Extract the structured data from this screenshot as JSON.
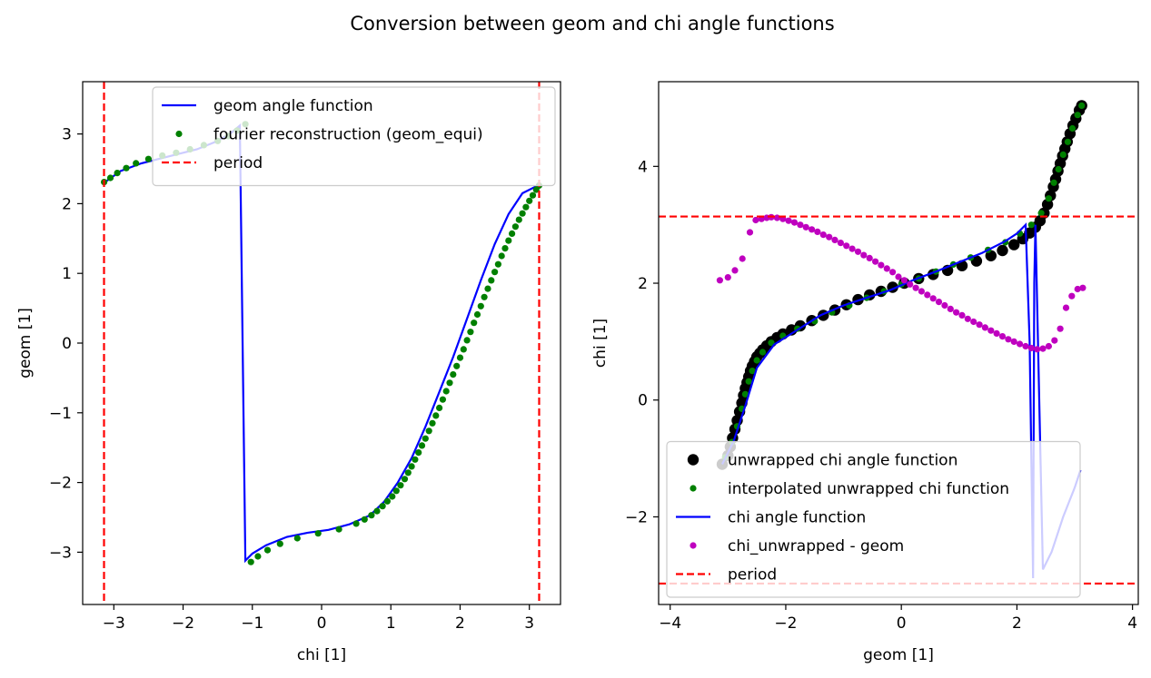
{
  "figure": {
    "suptitle": "Conversion between geom and chi angle functions"
  },
  "chart_data": [
    {
      "type": "line",
      "title": "",
      "xlabel": "chi [1]",
      "ylabel": "geom [1]",
      "xlim": [
        -3.45,
        3.45
      ],
      "ylim": [
        -3.75,
        3.75
      ],
      "xticks": [
        -3,
        -2,
        -1,
        0,
        1,
        2,
        3
      ],
      "yticks": [
        -3,
        -2,
        -1,
        0,
        1,
        2,
        3
      ],
      "xtick_labels": [
        "−3",
        "−2",
        "−1",
        "0",
        "1",
        "2",
        "3"
      ],
      "ytick_labels": [
        "−3",
        "−2",
        "−1",
        "0",
        "1",
        "2",
        "3"
      ],
      "grid": false,
      "legend_position": "upper right",
      "colors": {
        "geom": "#0000ff",
        "fourier": "#008000",
        "period": "#ff0000"
      },
      "series": [
        {
          "name": "geom angle function",
          "style": "solid-line",
          "x": [
            -3.14,
            -2.9,
            -2.6,
            -2.2,
            -1.8,
            -1.5,
            -1.3,
            -1.18,
            -1.1,
            -1.0,
            -0.8,
            -0.5,
            -0.2,
            0.1,
            0.4,
            0.7,
            0.9,
            1.1,
            1.3,
            1.5,
            1.7,
            1.9,
            2.1,
            2.3,
            2.5,
            2.7,
            2.9,
            3.14
          ],
          "y": [
            2.3,
            2.47,
            2.58,
            2.68,
            2.78,
            2.9,
            3.02,
            3.12,
            -3.12,
            -3.02,
            -2.9,
            -2.78,
            -2.72,
            -2.68,
            -2.6,
            -2.47,
            -2.28,
            -2.0,
            -1.65,
            -1.2,
            -0.7,
            -0.2,
            0.35,
            0.9,
            1.42,
            1.85,
            2.15,
            2.27
          ]
        },
        {
          "name": "fourier reconstruction (geom_equi)",
          "style": "markers",
          "x": [
            -3.14,
            -3.05,
            -2.95,
            -2.82,
            -2.68,
            -2.5,
            -2.3,
            -2.1,
            -1.9,
            -1.7,
            -1.5,
            -1.35,
            -1.22,
            -1.1,
            -1.02,
            -0.92,
            -0.78,
            -0.6,
            -0.35,
            -0.05,
            0.25,
            0.5,
            0.62,
            0.72,
            0.8,
            0.88,
            0.95,
            1.02,
            1.08,
            1.14,
            1.2,
            1.25,
            1.3,
            1.35,
            1.4,
            1.45,
            1.5,
            1.55,
            1.6,
            1.65,
            1.7,
            1.75,
            1.8,
            1.85,
            1.9,
            1.95,
            2.0,
            2.05,
            2.1,
            2.15,
            2.2,
            2.25,
            2.3,
            2.35,
            2.4,
            2.45,
            2.5,
            2.55,
            2.6,
            2.65,
            2.7,
            2.75,
            2.8,
            2.85,
            2.9,
            2.95,
            3.0,
            3.05,
            3.1,
            3.14
          ],
          "y": [
            2.31,
            2.37,
            2.44,
            2.51,
            2.58,
            2.64,
            2.69,
            2.73,
            2.78,
            2.84,
            2.9,
            2.97,
            3.05,
            3.14,
            -3.14,
            -3.06,
            -2.97,
            -2.88,
            -2.8,
            -2.73,
            -2.67,
            -2.59,
            -2.53,
            -2.47,
            -2.41,
            -2.34,
            -2.27,
            -2.2,
            -2.12,
            -2.04,
            -1.95,
            -1.86,
            -1.77,
            -1.67,
            -1.57,
            -1.47,
            -1.37,
            -1.26,
            -1.15,
            -1.04,
            -0.93,
            -0.81,
            -0.69,
            -0.57,
            -0.45,
            -0.33,
            -0.21,
            -0.09,
            0.04,
            0.16,
            0.29,
            0.41,
            0.53,
            0.66,
            0.78,
            0.9,
            1.02,
            1.13,
            1.25,
            1.36,
            1.47,
            1.57,
            1.67,
            1.77,
            1.86,
            1.95,
            2.04,
            2.12,
            2.2,
            2.26
          ]
        },
        {
          "name": "period",
          "style": "dashed-vline",
          "x": [
            -3.14159,
            3.14159
          ]
        }
      ]
    },
    {
      "type": "line",
      "title": "",
      "xlabel": "geom [1]",
      "ylabel": "chi [1]",
      "xlim": [
        -4.2,
        4.1
      ],
      "ylim": [
        -3.5,
        5.45
      ],
      "xticks": [
        -4,
        -2,
        0,
        2,
        4
      ],
      "yticks": [
        -2,
        0,
        2,
        4
      ],
      "xtick_labels": [
        "−4",
        "−2",
        "0",
        "2",
        "4"
      ],
      "ytick_labels": [
        "−2",
        "0",
        "2",
        "4"
      ],
      "grid": false,
      "legend_position": "lower left",
      "colors": {
        "unwrapped": "#000000",
        "interpolated": "#008000",
        "chi": "#0000ff",
        "diff": "#bf00bf",
        "period": "#ff0000"
      },
      "series": [
        {
          "name": "unwrapped chi angle function",
          "style": "large-markers",
          "x": [
            -3.1,
            -3.0,
            -2.96,
            -2.92,
            -2.88,
            -2.84,
            -2.8,
            -2.76,
            -2.73,
            -2.7,
            -2.67,
            -2.64,
            -2.61,
            -2.58,
            -2.54,
            -2.5,
            -2.45,
            -2.4,
            -2.33,
            -2.25,
            -2.15,
            -2.05,
            -1.9,
            -1.75,
            -1.55,
            -1.35,
            -1.15,
            -0.95,
            -0.75,
            -0.55,
            -0.35,
            -0.15,
            0.05,
            0.3,
            0.55,
            0.8,
            1.05,
            1.3,
            1.55,
            1.75,
            1.95,
            2.1,
            2.22,
            2.32,
            2.4,
            2.47,
            2.53,
            2.58,
            2.63,
            2.67,
            2.71,
            2.75,
            2.79,
            2.83,
            2.87,
            2.92,
            2.97,
            3.02,
            3.08,
            3.12
          ],
          "y": [
            -1.1,
            -0.95,
            -0.8,
            -0.65,
            -0.5,
            -0.35,
            -0.2,
            -0.05,
            0.08,
            0.2,
            0.3,
            0.4,
            0.5,
            0.58,
            0.66,
            0.74,
            0.8,
            0.86,
            0.93,
            1.0,
            1.07,
            1.13,
            1.2,
            1.27,
            1.36,
            1.45,
            1.54,
            1.63,
            1.72,
            1.8,
            1.86,
            1.93,
            2.0,
            2.08,
            2.15,
            2.22,
            2.3,
            2.38,
            2.47,
            2.56,
            2.66,
            2.76,
            2.86,
            2.96,
            3.07,
            3.2,
            3.35,
            3.5,
            3.65,
            3.78,
            3.92,
            4.05,
            4.18,
            4.3,
            4.42,
            4.56,
            4.7,
            4.82,
            4.96,
            5.04
          ]
        },
        {
          "name": "interpolated unwrapped chi function",
          "style": "markers",
          "x": [
            -3.05,
            -2.93,
            -2.84,
            -2.76,
            -2.7,
            -2.64,
            -2.58,
            -2.5,
            -2.4,
            -2.25,
            -2.05,
            -1.8,
            -1.5,
            -1.2,
            -0.9,
            -0.6,
            -0.3,
            0.0,
            0.3,
            0.6,
            0.9,
            1.2,
            1.5,
            1.8,
            2.05,
            2.25,
            2.42,
            2.55,
            2.64,
            2.72,
            2.8,
            2.88,
            2.96,
            3.05,
            3.12
          ],
          "y": [
            -0.98,
            -0.72,
            -0.45,
            -0.15,
            0.1,
            0.32,
            0.5,
            0.68,
            0.82,
            0.98,
            1.1,
            1.22,
            1.35,
            1.5,
            1.62,
            1.75,
            1.86,
            1.98,
            2.08,
            2.2,
            2.32,
            2.44,
            2.57,
            2.7,
            2.85,
            3.0,
            3.2,
            3.45,
            3.72,
            3.95,
            4.2,
            4.42,
            4.65,
            4.88,
            5.04
          ]
        },
        {
          "name": "chi angle function",
          "style": "solid-line",
          "x": [
            -3.1,
            -2.9,
            -2.7,
            -2.5,
            -2.2,
            -1.8,
            -1.4,
            -1.0,
            -0.6,
            -0.2,
            0.2,
            0.6,
            1.0,
            1.4,
            1.8,
            2.0,
            2.1,
            2.15,
            2.22,
            2.28,
            2.3,
            2.32,
            2.45,
            2.6,
            2.8,
            3.0,
            3.1
          ],
          "y": [
            -1.1,
            -0.7,
            -0.1,
            0.55,
            0.95,
            1.2,
            1.45,
            1.62,
            1.75,
            1.88,
            2.05,
            2.2,
            2.36,
            2.52,
            2.72,
            2.85,
            2.95,
            3.0,
            1.0,
            -3.05,
            2.0,
            3.0,
            -2.9,
            -2.6,
            -2.0,
            -1.5,
            -1.2
          ]
        },
        {
          "name": "chi_unwrapped - geom",
          "style": "markers",
          "x": [
            -3.14,
            -3.0,
            -2.88,
            -2.75,
            -2.62,
            -2.52,
            -2.42,
            -2.33,
            -2.25,
            -2.15,
            -2.05,
            -1.95,
            -1.85,
            -1.75,
            -1.65,
            -1.55,
            -1.45,
            -1.35,
            -1.25,
            -1.15,
            -1.05,
            -0.95,
            -0.85,
            -0.75,
            -0.65,
            -0.55,
            -0.45,
            -0.35,
            -0.25,
            -0.15,
            -0.05,
            0.05,
            0.15,
            0.25,
            0.35,
            0.45,
            0.55,
            0.65,
            0.75,
            0.85,
            0.95,
            1.05,
            1.15,
            1.25,
            1.35,
            1.45,
            1.55,
            1.65,
            1.75,
            1.85,
            1.95,
            2.05,
            2.15,
            2.25,
            2.35,
            2.45,
            2.55,
            2.65,
            2.75,
            2.85,
            2.95,
            3.05,
            3.14
          ],
          "y": [
            2.05,
            2.1,
            2.22,
            2.42,
            2.87,
            3.08,
            3.1,
            3.12,
            3.13,
            3.12,
            3.1,
            3.07,
            3.04,
            3.0,
            2.96,
            2.92,
            2.88,
            2.83,
            2.79,
            2.74,
            2.69,
            2.64,
            2.59,
            2.54,
            2.48,
            2.43,
            2.37,
            2.31,
            2.25,
            2.19,
            2.11,
            2.05,
            1.98,
            1.92,
            1.86,
            1.8,
            1.74,
            1.68,
            1.62,
            1.56,
            1.5,
            1.45,
            1.39,
            1.34,
            1.29,
            1.24,
            1.19,
            1.14,
            1.09,
            1.04,
            1.0,
            0.96,
            0.92,
            0.89,
            0.87,
            0.88,
            0.92,
            1.02,
            1.22,
            1.58,
            1.78,
            1.9,
            1.92
          ]
        },
        {
          "name": "period",
          "style": "dashed-hline",
          "y": [
            -3.14159,
            3.14159
          ]
        }
      ]
    }
  ]
}
